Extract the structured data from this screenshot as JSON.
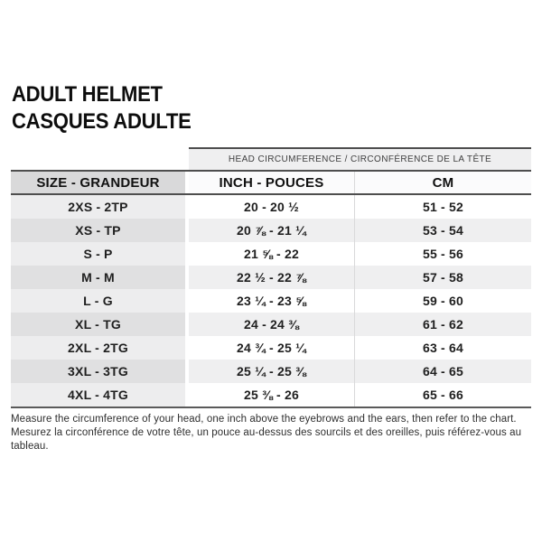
{
  "title": {
    "line1": "ADULT HELMET",
    "line2": "CASQUES ADULTE"
  },
  "table": {
    "span_header": "HEAD CIRCUMFERENCE / CIRCONFÉRENCE DE LA TÊTE",
    "columns": [
      "SIZE - GRANDEUR",
      "INCH - POUCES",
      "CM"
    ],
    "rows": [
      {
        "size": "2XS - 2TP",
        "inch": "20 - 20 ½",
        "cm": "51 - 52"
      },
      {
        "size": "XS - TP",
        "inch": "20 ⅞ - 21 ¼",
        "cm": "53 - 54"
      },
      {
        "size": "S - P",
        "inch": "21 ⅝ - 22",
        "cm": "55 - 56"
      },
      {
        "size": "M - M",
        "inch": "22 ½ - 22 ⅞",
        "cm": "57 - 58"
      },
      {
        "size": "L - G",
        "inch": "23 ¼ - 23 ⅝",
        "cm": "59 - 60"
      },
      {
        "size": "XL - TG",
        "inch": "24 - 24 ⅜",
        "cm": "61 - 62"
      },
      {
        "size": "2XL - 2TG",
        "inch": "24 ¾ - 25 ¼",
        "cm": "63 - 64"
      },
      {
        "size": "3XL - 3TG",
        "inch": "25 ¼ - 25 ⅜",
        "cm": "64 - 65"
      },
      {
        "size": "4XL - 4TG",
        "inch": "25 ⅜ - 26",
        "cm": "65 - 66"
      }
    ]
  },
  "footer": {
    "line1": "Measure the circumference of your head, one inch above the eyebrows and the ears, then refer to the chart.",
    "line2": "Mesurez la circonférence de votre tête, un pouce au-dessus des sourcils et des oreilles, puis référez-vous au tableau."
  },
  "colors": {
    "header_fill": "#d9d9da",
    "span_header_fill": "#efeff0",
    "size_col_light": "#ededee",
    "size_col_dark": "#e0e0e1",
    "row_shade": "#efeff0",
    "rule_dark": "#4e4e4e"
  }
}
